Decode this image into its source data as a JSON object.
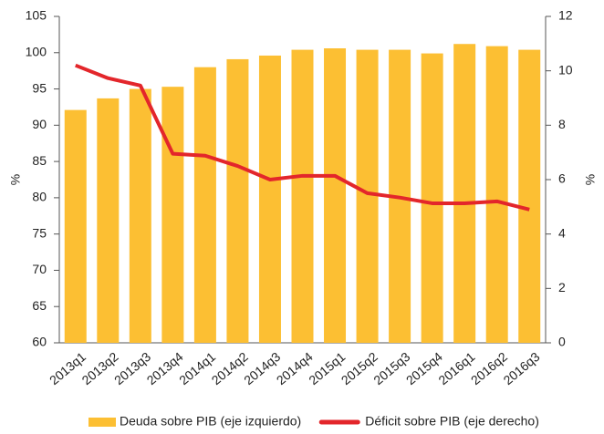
{
  "chart_data": {
    "type": "bar-line",
    "categories": [
      "2013q1",
      "2013q2",
      "2013q3",
      "2013q4",
      "2014q1",
      "2014q2",
      "2014q3",
      "2014q4",
      "2015q1",
      "2015q2",
      "2015q3",
      "2015q4",
      "2016q1",
      "2016q2",
      "2016q3"
    ],
    "series": [
      {
        "name": "Deuda sobre PIB (eje izquierdo)",
        "type": "bar",
        "color": "#fcbf33",
        "axis": "y",
        "values": [
          92.1,
          93.7,
          95.0,
          95.3,
          98.0,
          99.1,
          99.6,
          100.4,
          100.6,
          100.4,
          100.4,
          99.9,
          101.2,
          100.9,
          100.4
        ]
      },
      {
        "name": "Déficit sobre PIB (eje derecho)",
        "type": "line",
        "color": "#e3262b",
        "axis": "y2",
        "values": [
          10.2,
          9.73,
          9.46,
          6.95,
          6.88,
          6.5,
          6.0,
          6.14,
          6.14,
          5.5,
          5.34,
          5.13,
          5.13,
          5.2,
          4.9
        ]
      }
    ],
    "ylabel": "%",
    "y2label": "%",
    "ylim": [
      60,
      105
    ],
    "yticks": [
      60,
      65,
      70,
      75,
      80,
      85,
      90,
      95,
      100,
      105
    ],
    "y2lim": [
      0,
      12
    ],
    "y2ticks": [
      0,
      2,
      4,
      6,
      8,
      10,
      12
    ],
    "legend": "bottom"
  }
}
